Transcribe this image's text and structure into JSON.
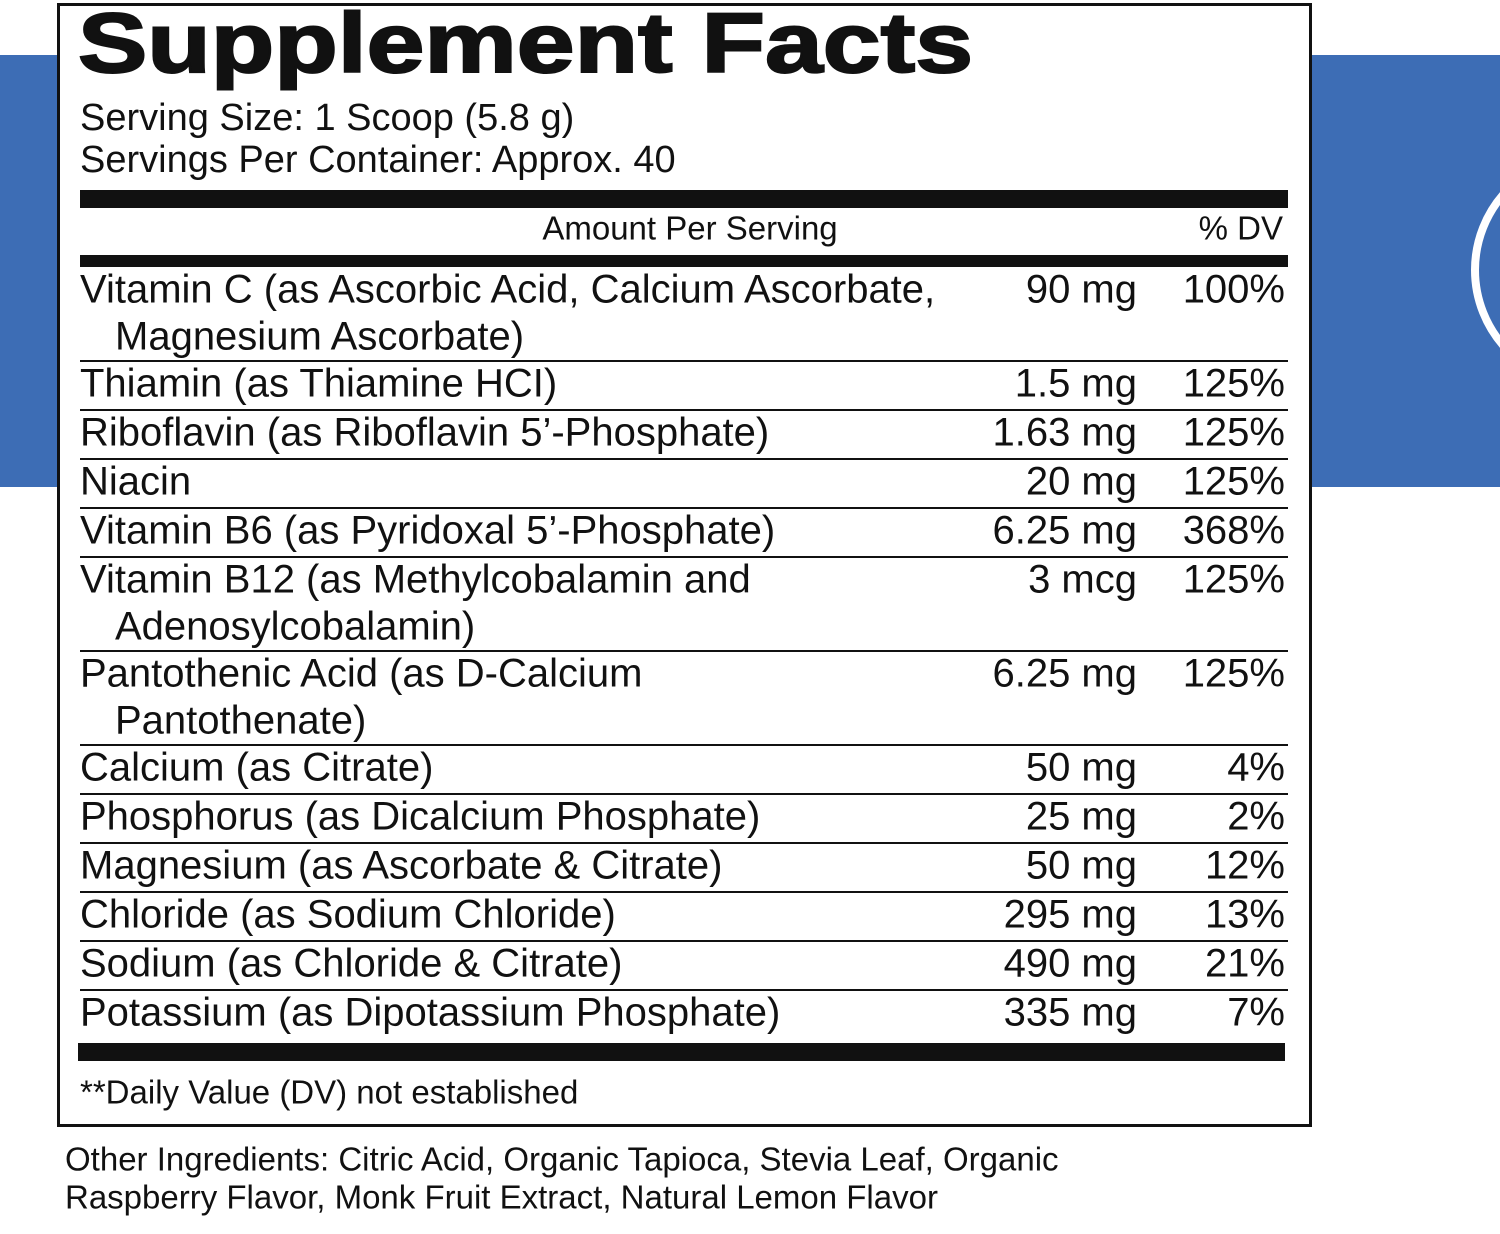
{
  "label": {
    "title": "Supplement Facts",
    "serving_size": "Serving Size: 1 Scoop (5.8 g)",
    "servings_per_container": "Servings Per Container: Approx. 40",
    "header": {
      "amount": "Amount Per Serving",
      "dv": "% DV"
    },
    "rows": [
      {
        "name": [
          "Vitamin C (as Ascorbic Acid, Calcium Ascorbate,",
          "Magnesium Ascorbate)"
        ],
        "amount": "90 mg",
        "dv": "100%"
      },
      {
        "name": [
          "Thiamin (as Thiamine HCI)"
        ],
        "amount": "1.5 mg",
        "dv": "125%"
      },
      {
        "name": [
          "Riboflavin (as Riboflavin 5’-Phosphate)"
        ],
        "amount": "1.63 mg",
        "dv": "125%"
      },
      {
        "name": [
          "Niacin"
        ],
        "amount": "20 mg",
        "dv": "125%"
      },
      {
        "name": [
          "Vitamin B6 (as Pyridoxal 5’-Phosphate)"
        ],
        "amount": "6.25 mg",
        "dv": "368%"
      },
      {
        "name": [
          "Vitamin B12 (as Methylcobalamin and",
          "Adenosylcobalamin)"
        ],
        "amount": "3 mcg",
        "dv": "125%"
      },
      {
        "name": [
          "Pantothenic Acid (as D-Calcium",
          "Pantothenate)"
        ],
        "amount": "6.25 mg",
        "dv": "125%"
      },
      {
        "name": [
          "Calcium (as Citrate)"
        ],
        "amount": "50 mg",
        "dv": "4%"
      },
      {
        "name": [
          "Phosphorus (as Dicalcium Phosphate)"
        ],
        "amount": "25 mg",
        "dv": "2%"
      },
      {
        "name": [
          "Magnesium (as Ascorbate & Citrate)"
        ],
        "amount": "50 mg",
        "dv": "12%"
      },
      {
        "name": [
          "Chloride (as Sodium Chloride)"
        ],
        "amount": "295 mg",
        "dv": "13%"
      },
      {
        "name": [
          "Sodium (as Chloride & Citrate)"
        ],
        "amount": "490 mg",
        "dv": "21%"
      },
      {
        "name": [
          "Potassium (as Dipotassium Phosphate)"
        ],
        "amount": "335 mg",
        "dv": "7%"
      }
    ],
    "footnote": "**Daily Value (DV) not established",
    "other_ingredients": [
      "Other Ingredients: Citric Acid, Organic Tapioca, Stevia Leaf, Organic",
      "Raspberry Flavor, Monk Fruit Extract, Natural Lemon Flavor"
    ]
  }
}
